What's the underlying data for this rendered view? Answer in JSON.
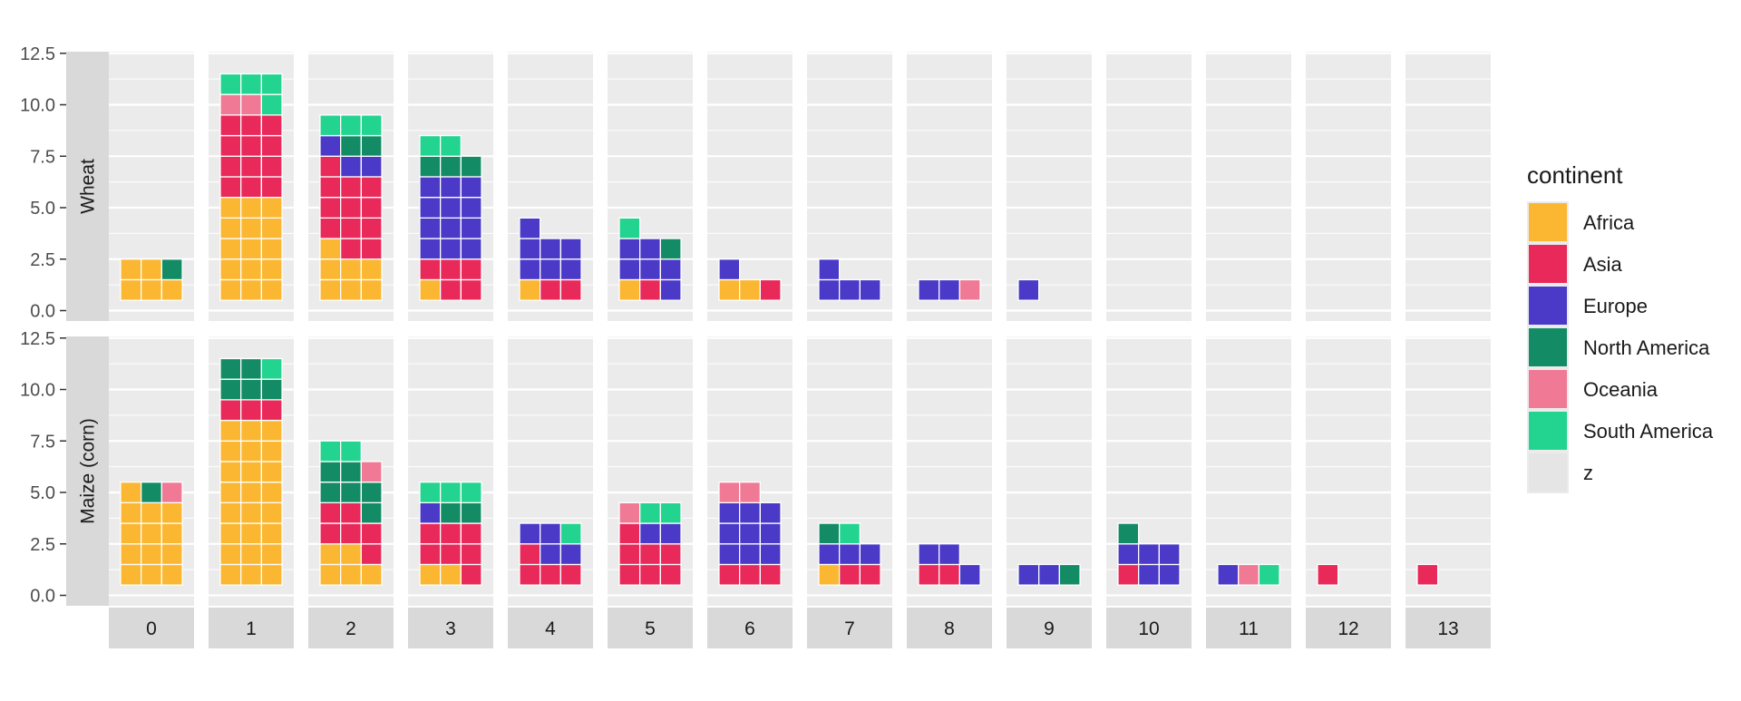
{
  "chart_data": {
    "type": "waffle",
    "legend": {
      "title": "continent",
      "items": [
        {
          "label": "Africa",
          "color": "#FBB731"
        },
        {
          "label": "Asia",
          "color": "#E8295A"
        },
        {
          "label": "Europe",
          "color": "#4A3AC7"
        },
        {
          "label": "North America",
          "color": "#138C66"
        },
        {
          "label": "Oceania",
          "color": "#F07A95"
        },
        {
          "label": "South America",
          "color": "#22D48F"
        },
        {
          "label": "z",
          "color": "#E5E5E5"
        }
      ]
    },
    "y_ticks": [
      "0.0",
      "2.5",
      "5.0",
      "7.5",
      "10.0",
      "12.5"
    ],
    "ylim": [
      0,
      12.5
    ],
    "columns": [
      "0",
      "1",
      "2",
      "3",
      "4",
      "5",
      "6",
      "7",
      "8",
      "9",
      "10",
      "11",
      "12",
      "13"
    ],
    "rows": [
      {
        "label": "Wheat",
        "panels": [
          {
            "Africa": 5,
            "North America": 1
          },
          {
            "Africa": 15,
            "Asia": 12,
            "Oceania": 2,
            "South America": 4
          },
          {
            "Africa": 7,
            "Asia": 12,
            "Europe": 3,
            "North America": 2,
            "South America": 3
          },
          {
            "Africa": 1,
            "Asia": 5,
            "Europe": 12,
            "North America": 3,
            "South America": 2
          },
          {
            "Africa": 1,
            "Asia": 2,
            "Europe": 7
          },
          {
            "Africa": 1,
            "Asia": 1,
            "Europe": 6,
            "North America": 1,
            "South America": 1
          },
          {
            "Africa": 2,
            "Asia": 1,
            "Europe": 1
          },
          {
            "Europe": 4
          },
          {
            "Europe": 2,
            "Oceania": 1
          },
          {
            "Europe": 1
          },
          {},
          {},
          {},
          {}
        ]
      },
      {
        "label": "Maize (corn)",
        "panels": [
          {
            "Africa": 13,
            "North America": 1,
            "Oceania": 1
          },
          {
            "Africa": 24,
            "Asia": 3,
            "North America": 5,
            "South America": 1
          },
          {
            "Africa": 5,
            "Asia": 6,
            "North America": 6,
            "Oceania": 1,
            "South America": 2
          },
          {
            "Africa": 2,
            "Asia": 7,
            "Europe": 1,
            "North America": 2,
            "South America": 3
          },
          {
            "Asia": 4,
            "Europe": 4,
            "South America": 1
          },
          {
            "Asia": 7,
            "Europe": 2,
            "Oceania": 1,
            "South America": 2
          },
          {
            "Asia": 3,
            "Europe": 9,
            "Oceania": 2
          },
          {
            "Africa": 1,
            "Asia": 2,
            "Europe": 3,
            "North America": 1,
            "South America": 1
          },
          {
            "Asia": 2,
            "Europe": 3
          },
          {
            "Europe": 2,
            "North America": 1
          },
          {
            "Asia": 1,
            "Europe": 5,
            "North America": 1
          },
          {
            "Europe": 1,
            "Oceania": 1,
            "South America": 1
          },
          {
            "Asia": 1
          },
          {
            "Asia": 1
          }
        ]
      }
    ]
  }
}
